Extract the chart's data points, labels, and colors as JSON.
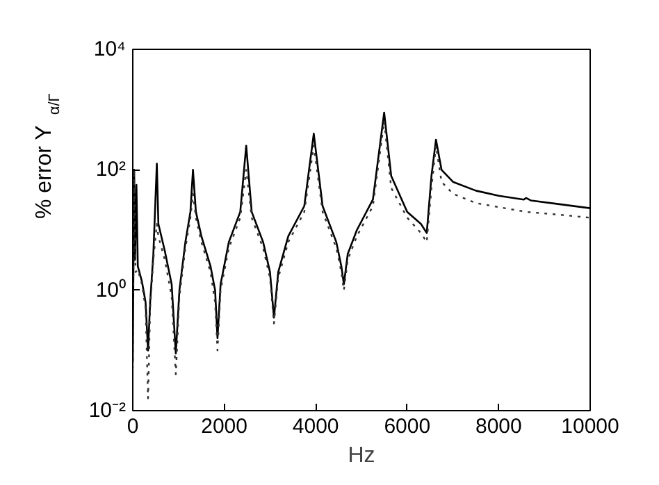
{
  "chart_data": {
    "type": "line",
    "xlabel": "Hz",
    "ylabel": "% error Y$_{α/Γ}$",
    "log": "y",
    "grid": false,
    "xlim": [
      0,
      10000
    ],
    "xticks": [
      0,
      2000,
      4000,
      6000,
      8000,
      10000
    ],
    "ylim": [
      0.01,
      10000
    ],
    "yticks": [
      {
        "value": 0.01,
        "label": "10⁻²"
      },
      {
        "value": 1,
        "label": "10⁰"
      },
      {
        "value": 100,
        "label": "10²"
      },
      {
        "value": 10000,
        "label": "10⁴"
      }
    ],
    "series": [
      {
        "color": "#000000",
        "line_style": "solid",
        "x": [
          0,
          30,
          50,
          80,
          110,
          200,
          280,
          334,
          380,
          450,
          526,
          560,
          700,
          850,
          941,
          1020,
          1150,
          1260,
          1316,
          1380,
          1500,
          1700,
          1800,
          1852,
          1920,
          2100,
          2350,
          2480,
          2600,
          2850,
          3000,
          3087,
          3180,
          3400,
          3750,
          3957,
          4150,
          4450,
          4560,
          4615,
          4700,
          4900,
          5250,
          5496,
          5650,
          6000,
          6300,
          6427,
          6530,
          6629,
          6750,
          7000,
          7500,
          8000,
          8550,
          8600,
          8700,
          9300,
          10000
        ],
        "values": [
          0.063,
          100,
          3.2,
          56,
          2.5,
          1.4,
          0.63,
          0.1,
          0.63,
          4,
          126,
          12.6,
          4.5,
          1.26,
          0.089,
          1,
          6.3,
          20,
          100,
          20,
          7.9,
          2.5,
          1,
          0.16,
          1.26,
          6.3,
          20,
          251,
          20,
          6.3,
          2,
          0.35,
          2,
          7.9,
          25,
          398,
          25,
          6.3,
          2.5,
          1.26,
          4,
          10,
          32,
          891,
          79,
          20,
          12.6,
          8.9,
          79,
          316,
          100,
          63,
          45,
          37,
          32,
          34,
          31,
          27,
          23
        ]
      },
      {
        "color": "#333333",
        "line_style": "dotted",
        "x": [
          0,
          30,
          60,
          110,
          200,
          280,
          334,
          380,
          450,
          526,
          560,
          700,
          850,
          941,
          1020,
          1150,
          1260,
          1316,
          1380,
          1500,
          1700,
          1800,
          1852,
          1920,
          2100,
          2350,
          2480,
          2600,
          2850,
          3000,
          3087,
          3180,
          3400,
          3750,
          3957,
          4150,
          4450,
          4560,
          4615,
          4700,
          4900,
          5250,
          5496,
          5650,
          6000,
          6300,
          6427,
          6530,
          6629,
          6750,
          7000,
          7500,
          8000,
          8600,
          9300,
          10000
        ],
        "values": [
          0.05,
          100,
          2,
          2.2,
          1.26,
          0.5,
          0.016,
          0.5,
          3.2,
          12.6,
          7.9,
          3.2,
          0.79,
          0.04,
          0.79,
          5,
          16,
          40,
          16,
          6.3,
          2,
          0.63,
          0.1,
          1,
          5,
          16,
          100,
          16,
          5,
          1.6,
          0.28,
          1.6,
          6.3,
          20,
          251,
          20,
          5,
          2,
          1,
          3.2,
          7.9,
          25,
          631,
          50,
          16,
          8.9,
          6.3,
          50,
          251,
          63,
          40,
          28,
          24,
          20,
          18,
          16
        ]
      }
    ]
  }
}
